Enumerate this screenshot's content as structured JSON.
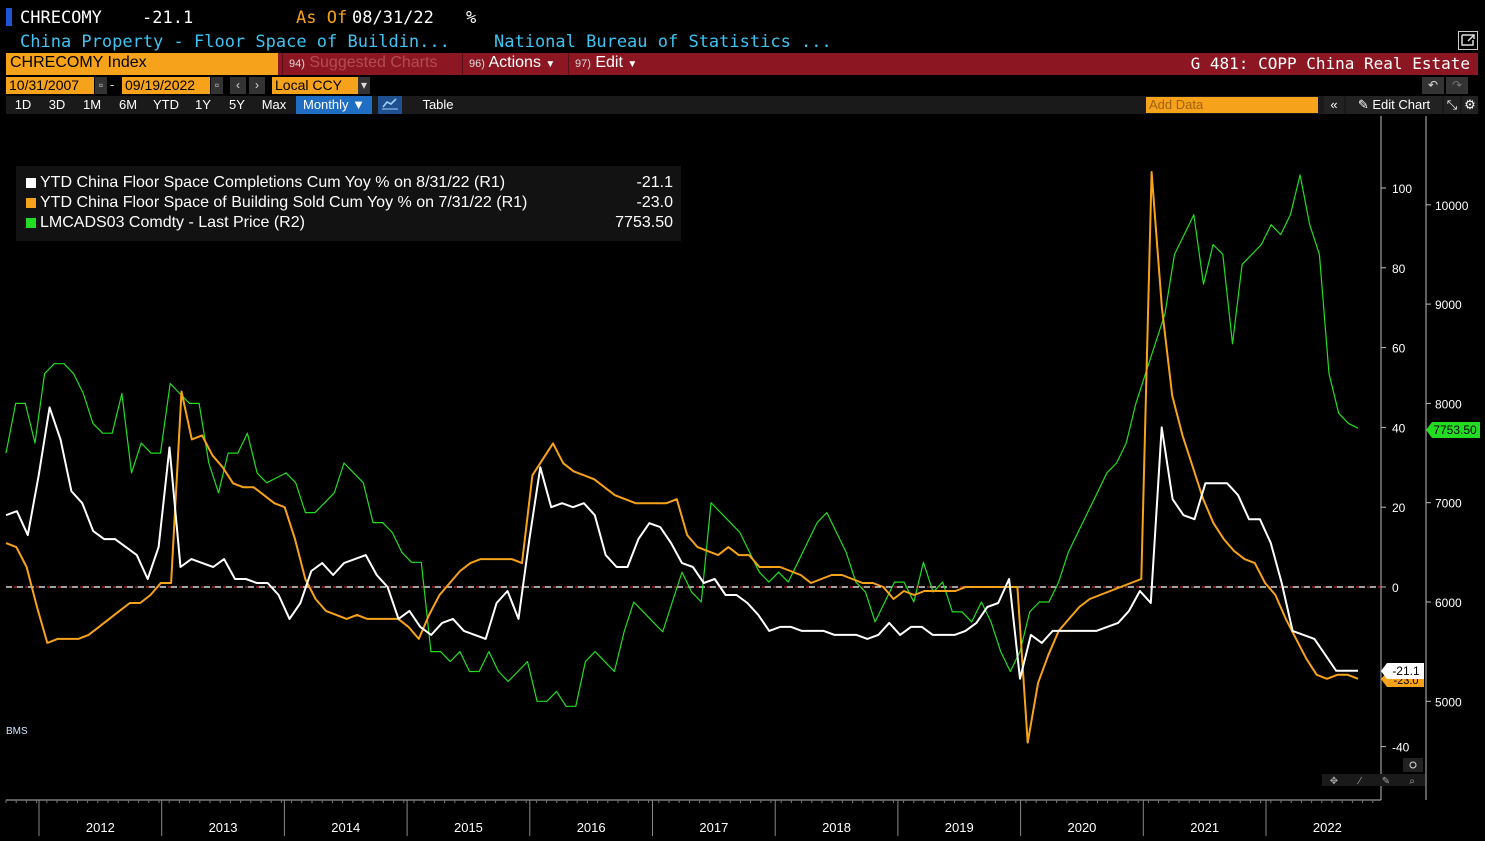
{
  "header": {
    "ticker": "CHRECOMY",
    "last_value": "-21.1",
    "asof_label": "As Of",
    "asof_date": "08/31/22",
    "unit": "%",
    "description": "China Property - Floor Space of Buildin...",
    "source": "National Bureau of Statistics ..."
  },
  "toolbar": {
    "security": "CHRECOMY Index",
    "suggested_num": "94)",
    "suggested": "Suggested Charts",
    "actions_num": "96)",
    "actions": "Actions",
    "edit_num": "97)",
    "edit": "Edit",
    "chart_title": "G 481: COPP China Real Estate",
    "start_date": "10/31/2007",
    "end_date": "09/19/2022",
    "currency": "Local CCY",
    "periods": [
      "1D",
      "3D",
      "1M",
      "6M",
      "YTD",
      "1Y",
      "5Y",
      "Max"
    ],
    "frequency": "Monthly",
    "table": "Table",
    "add_data_placeholder": "Add Data",
    "edit_chart": "Edit Chart"
  },
  "legend": [
    {
      "label": "YTD China Floor Space Completions Cum Yoy % on 8/31/22 (R1)",
      "value": "-21.1",
      "color": "#ffffff"
    },
    {
      "label": "YTD China Floor Space of Building Sold Cum Yoy % on 7/31/22 (R1)",
      "value": "-23.0",
      "color": "#f7a21b"
    },
    {
      "label": "LMCADS03 Comdty - Last Price (R2)",
      "value": "7753.50",
      "color": "#22dd22"
    }
  ],
  "watermark": "BMS",
  "chart_data": {
    "type": "line",
    "x_axis_years": [
      "2012",
      "2013",
      "2014",
      "2015",
      "2016",
      "2017",
      "2018",
      "2019",
      "2020",
      "2021",
      "2022"
    ],
    "y_r1": {
      "ticks": [
        100,
        80,
        60,
        40,
        20,
        0,
        -40
      ],
      "ylim": [
        -44,
        113
      ]
    },
    "y_r2": {
      "ticks": [
        10000,
        9000,
        8000,
        7000,
        6000,
        5000
      ],
      "ylim": [
        4550,
        10400
      ]
    },
    "reference_line": 0,
    "last_labels": {
      "completions": "-21.1",
      "sold": "-23.0",
      "copper": "7753.50"
    },
    "series": [
      {
        "name": "YTD China Floor Space Completions Cum Yoy %",
        "axis": "R1",
        "color": "#ffffff",
        "values": [
          18,
          19,
          13,
          28,
          45,
          37,
          24,
          21,
          14,
          12,
          12,
          10,
          8,
          2,
          10,
          35,
          5,
          7,
          6,
          5,
          7,
          2,
          2,
          1,
          1,
          -2,
          -8,
          -4,
          4,
          6,
          3,
          6,
          7,
          8,
          3,
          0,
          -8,
          -6,
          -10,
          -12,
          -9,
          -8,
          -11,
          -12,
          -13,
          -4,
          -1,
          -8,
          12,
          30,
          20,
          21,
          20,
          21,
          18,
          8,
          5,
          5,
          12,
          16,
          15,
          11,
          6,
          5,
          1,
          2,
          -2,
          -2,
          -4,
          -7,
          -11,
          -10,
          -10,
          -11,
          -11,
          -11,
          -12,
          -12,
          -12,
          -13,
          -12,
          -9,
          -12,
          -10,
          -10,
          -12,
          -12,
          -12,
          -11,
          -9,
          -5,
          -4,
          2,
          -23,
          -12,
          -14,
          -11,
          -11,
          -11,
          -11,
          -11,
          -10,
          -9,
          -6,
          -1,
          -4,
          40,
          22,
          18,
          17,
          26,
          26,
          26,
          23,
          17,
          17,
          11,
          1,
          -11,
          -12,
          -13,
          -17,
          -21,
          -21,
          -21
        ]
      },
      {
        "name": "YTD China Floor Space of Building Sold Cum Yoy %",
        "axis": "R1",
        "color": "#f7a21b",
        "values": [
          11,
          10,
          5,
          -5,
          -14,
          -13,
          -13,
          -13,
          -12,
          -10,
          -8,
          -6,
          -4,
          -4,
          -2,
          1,
          1,
          49,
          37,
          38,
          33,
          30,
          26,
          25,
          25,
          23,
          21,
          20,
          12,
          2,
          -3,
          -6,
          -7,
          -8,
          -7,
          -8,
          -8,
          -8,
          -8,
          -10,
          -13,
          -7,
          -2,
          1,
          4,
          6,
          7,
          7,
          7,
          7,
          6,
          28,
          32,
          36,
          31,
          29,
          28,
          27,
          25,
          23,
          22,
          21,
          21,
          21,
          21,
          22,
          13,
          10,
          9,
          8,
          10,
          8,
          8,
          5,
          5,
          5,
          4,
          3,
          1,
          2,
          3,
          3,
          2,
          1,
          1,
          0,
          -3,
          -1,
          -2,
          -1,
          -1,
          -1,
          -1,
          0,
          0,
          0,
          0,
          0,
          0,
          -39,
          -24,
          -17,
          -11,
          -8,
          -5,
          -3,
          -2,
          -1,
          0,
          1,
          2,
          104,
          70,
          48,
          38,
          30,
          22,
          16,
          12,
          9,
          7,
          6,
          1,
          -2,
          -8,
          -13,
          -18,
          -22,
          -23,
          -22,
          -22,
          -23
        ]
      },
      {
        "name": "LMCADS03 Comdty - Last Price",
        "axis": "R2",
        "color": "#22dd22",
        "values": [
          7500,
          8000,
          8000,
          7600,
          8300,
          8400,
          8400,
          8300,
          8100,
          7800,
          7700,
          7700,
          8100,
          7300,
          7600,
          7500,
          7500,
          8200,
          8100,
          8000,
          8000,
          7400,
          7100,
          7500,
          7500,
          7700,
          7300,
          7200,
          7250,
          7300,
          7200,
          6900,
          6900,
          7000,
          7100,
          7400,
          7300,
          7200,
          6800,
          6800,
          6700,
          6500,
          6400,
          6400,
          5500,
          5500,
          5400,
          5500,
          5300,
          5300,
          5500,
          5300,
          5200,
          5300,
          5400,
          5000,
          5000,
          5100,
          4950,
          4950,
          5400,
          5500,
          5400,
          5300,
          5700,
          6000,
          5900,
          5800,
          5700,
          6000,
          6300,
          6100,
          6000,
          7000,
          6900,
          6800,
          6700,
          6500,
          6300,
          6200,
          6300,
          6200,
          6400,
          6600,
          6800,
          6900,
          6700,
          6500,
          6200,
          6100,
          5800,
          6000,
          6200,
          6200,
          6000,
          6400,
          6100,
          6200,
          5900,
          5900,
          5800,
          6000,
          5800,
          5500,
          5300,
          5500,
          5900,
          6000,
          6000,
          6200,
          6500,
          6700,
          6900,
          7100,
          7300,
          7400,
          7600,
          8000,
          8300,
          8600,
          8900,
          9500,
          9700,
          9900,
          9200,
          9600,
          9500,
          8600,
          9400,
          9500,
          9600,
          9800,
          9700,
          9900,
          10300,
          9800,
          9500,
          8300,
          7900,
          7800,
          7750
        ]
      }
    ]
  }
}
